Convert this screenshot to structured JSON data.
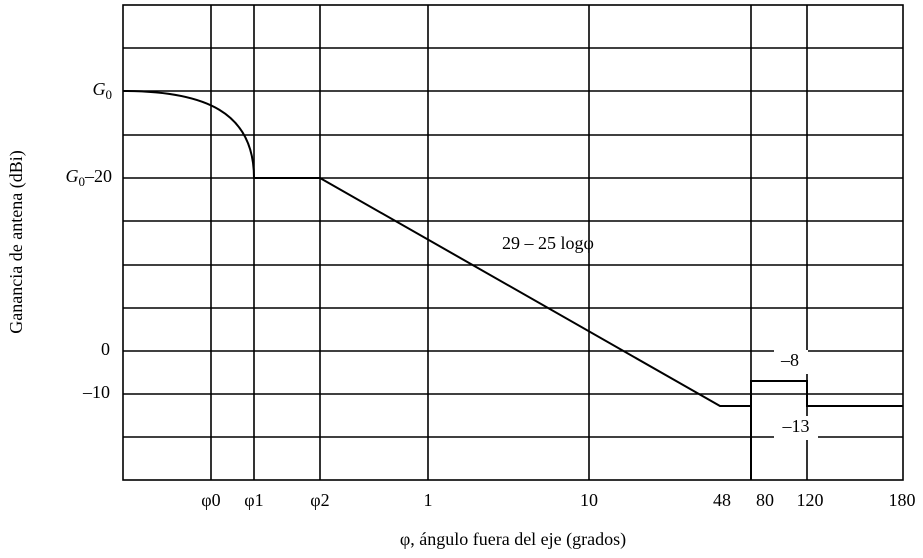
{
  "y_axis_title": "Ganancia de antena (dBi)",
  "x_axis_title": "φ, ángulo fuera del eje (grados)",
  "y_labels": [
    {
      "italic": "G",
      "subscript": "0"
    },
    {
      "italic": "G",
      "subscript": "0",
      "rest": "–20"
    },
    "0",
    "–10"
  ],
  "x_labels": [
    "φ0",
    "φ1",
    "φ2",
    "1",
    "10",
    "48",
    "80",
    "120",
    "180"
  ],
  "annotations": [
    "29 – 25 logφ",
    "–8",
    "–13"
  ]
}
